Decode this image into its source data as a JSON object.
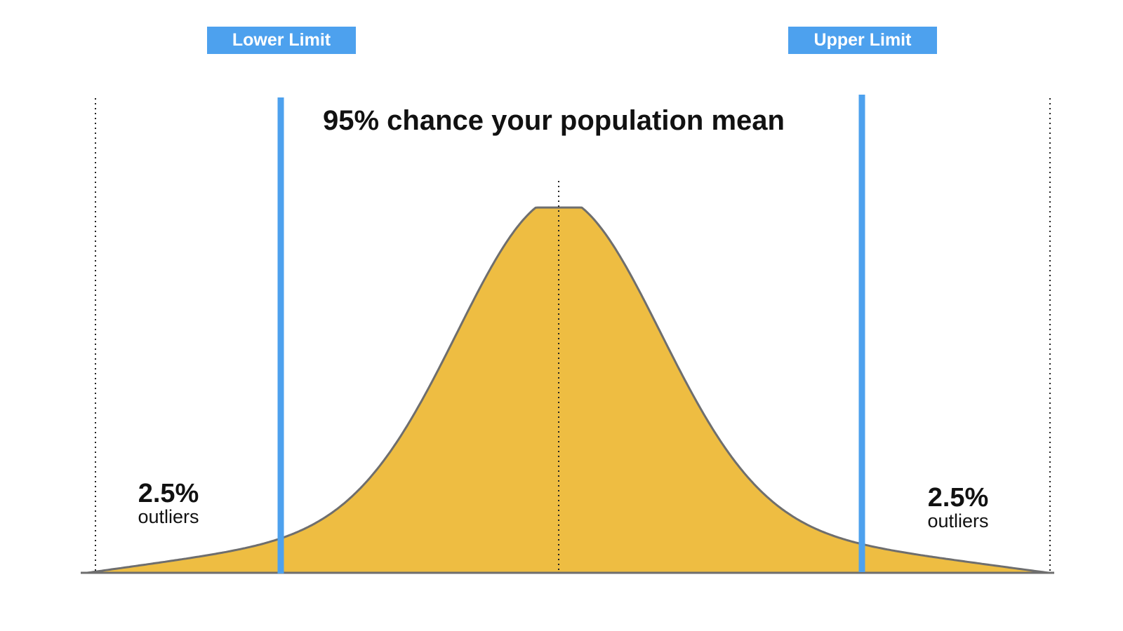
{
  "labels": {
    "lower_limit": "Lower Limit",
    "upper_limit": "Upper Limit",
    "headline": "95% chance your population mean"
  },
  "tails": {
    "left": {
      "percent": "2.5%",
      "caption": "outliers"
    },
    "right": {
      "percent": "2.5%",
      "caption": "outliers"
    }
  },
  "colors": {
    "curve_fill": "#eebd42",
    "curve_stroke": "#6e6e6e",
    "limit_line": "#4da1ee",
    "label_background": "#4da1ee",
    "label_text": "#ffffff",
    "text": "#111111"
  }
}
